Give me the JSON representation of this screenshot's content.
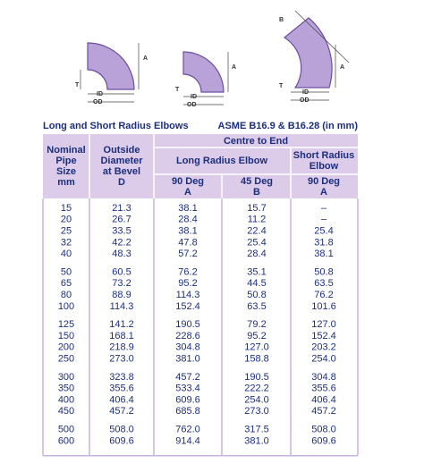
{
  "diagrams": [
    {
      "labels": [
        "A",
        "T",
        "ID",
        "OD"
      ]
    },
    {
      "labels": [
        "A",
        "T",
        "ID",
        "OD"
      ]
    },
    {
      "labels": [
        "B",
        "A",
        "T",
        "ID",
        "OD"
      ]
    }
  ],
  "caption": {
    "left": "Long and Short Radius Elbows",
    "right": "ASME B16.9 & B16.28 (in mm)"
  },
  "table": {
    "header": {
      "nominal": [
        "Nominal",
        "Pipe",
        "Size",
        "mm"
      ],
      "outside": [
        "Outside",
        "Diameter",
        "at Bevel",
        "D"
      ],
      "centre": "Centre to End",
      "long": "Long Radius Elbow",
      "short": [
        "Short Radius",
        "Elbow"
      ],
      "cols": [
        [
          "90 Deg",
          "A"
        ],
        [
          "45 Deg",
          "B"
        ],
        [
          "90 Deg",
          "A"
        ]
      ]
    },
    "groups": [
      [
        [
          "15",
          "21.3",
          "38.1",
          "15.7",
          "–"
        ],
        [
          "20",
          "26.7",
          "28.4",
          "11.2",
          "–"
        ],
        [
          "25",
          "33.5",
          "38.1",
          "22.4",
          "25.4"
        ],
        [
          "32",
          "42.2",
          "47.8",
          "25.4",
          "31.8"
        ],
        [
          "40",
          "48.3",
          "57.2",
          "28.4",
          "38.1"
        ]
      ],
      [
        [
          "50",
          "60.5",
          "76.2",
          "35.1",
          "50.8"
        ],
        [
          "65",
          "73.2",
          "95.2",
          "44.5",
          "63.5"
        ],
        [
          "80",
          "88.9",
          "114.3",
          "50.8",
          "76.2"
        ],
        [
          "100",
          "114.3",
          "152.4",
          "63.5",
          "101.6"
        ]
      ],
      [
        [
          "125",
          "141.2",
          "190.5",
          "79.2",
          "127.0"
        ],
        [
          "150",
          "168.1",
          "228.6",
          "95.2",
          "152.4"
        ],
        [
          "200",
          "218.9",
          "304.8",
          "127.0",
          "203.2"
        ],
        [
          "250",
          "273.0",
          "381.0",
          "158.8",
          "254.0"
        ]
      ],
      [
        [
          "300",
          "323.8",
          "457.2",
          "190.5",
          "304.8"
        ],
        [
          "350",
          "355.6",
          "533.4",
          "222.2",
          "355.6"
        ],
        [
          "400",
          "406.4",
          "609.6",
          "254.0",
          "406.4"
        ],
        [
          "450",
          "457.2",
          "685.8",
          "273.0",
          "457.2"
        ]
      ],
      [
        [
          "500",
          "508.0",
          "762.0",
          "317.5",
          "508.0"
        ],
        [
          "600",
          "609.6",
          "914.4",
          "381.0",
          "609.6"
        ]
      ]
    ]
  }
}
